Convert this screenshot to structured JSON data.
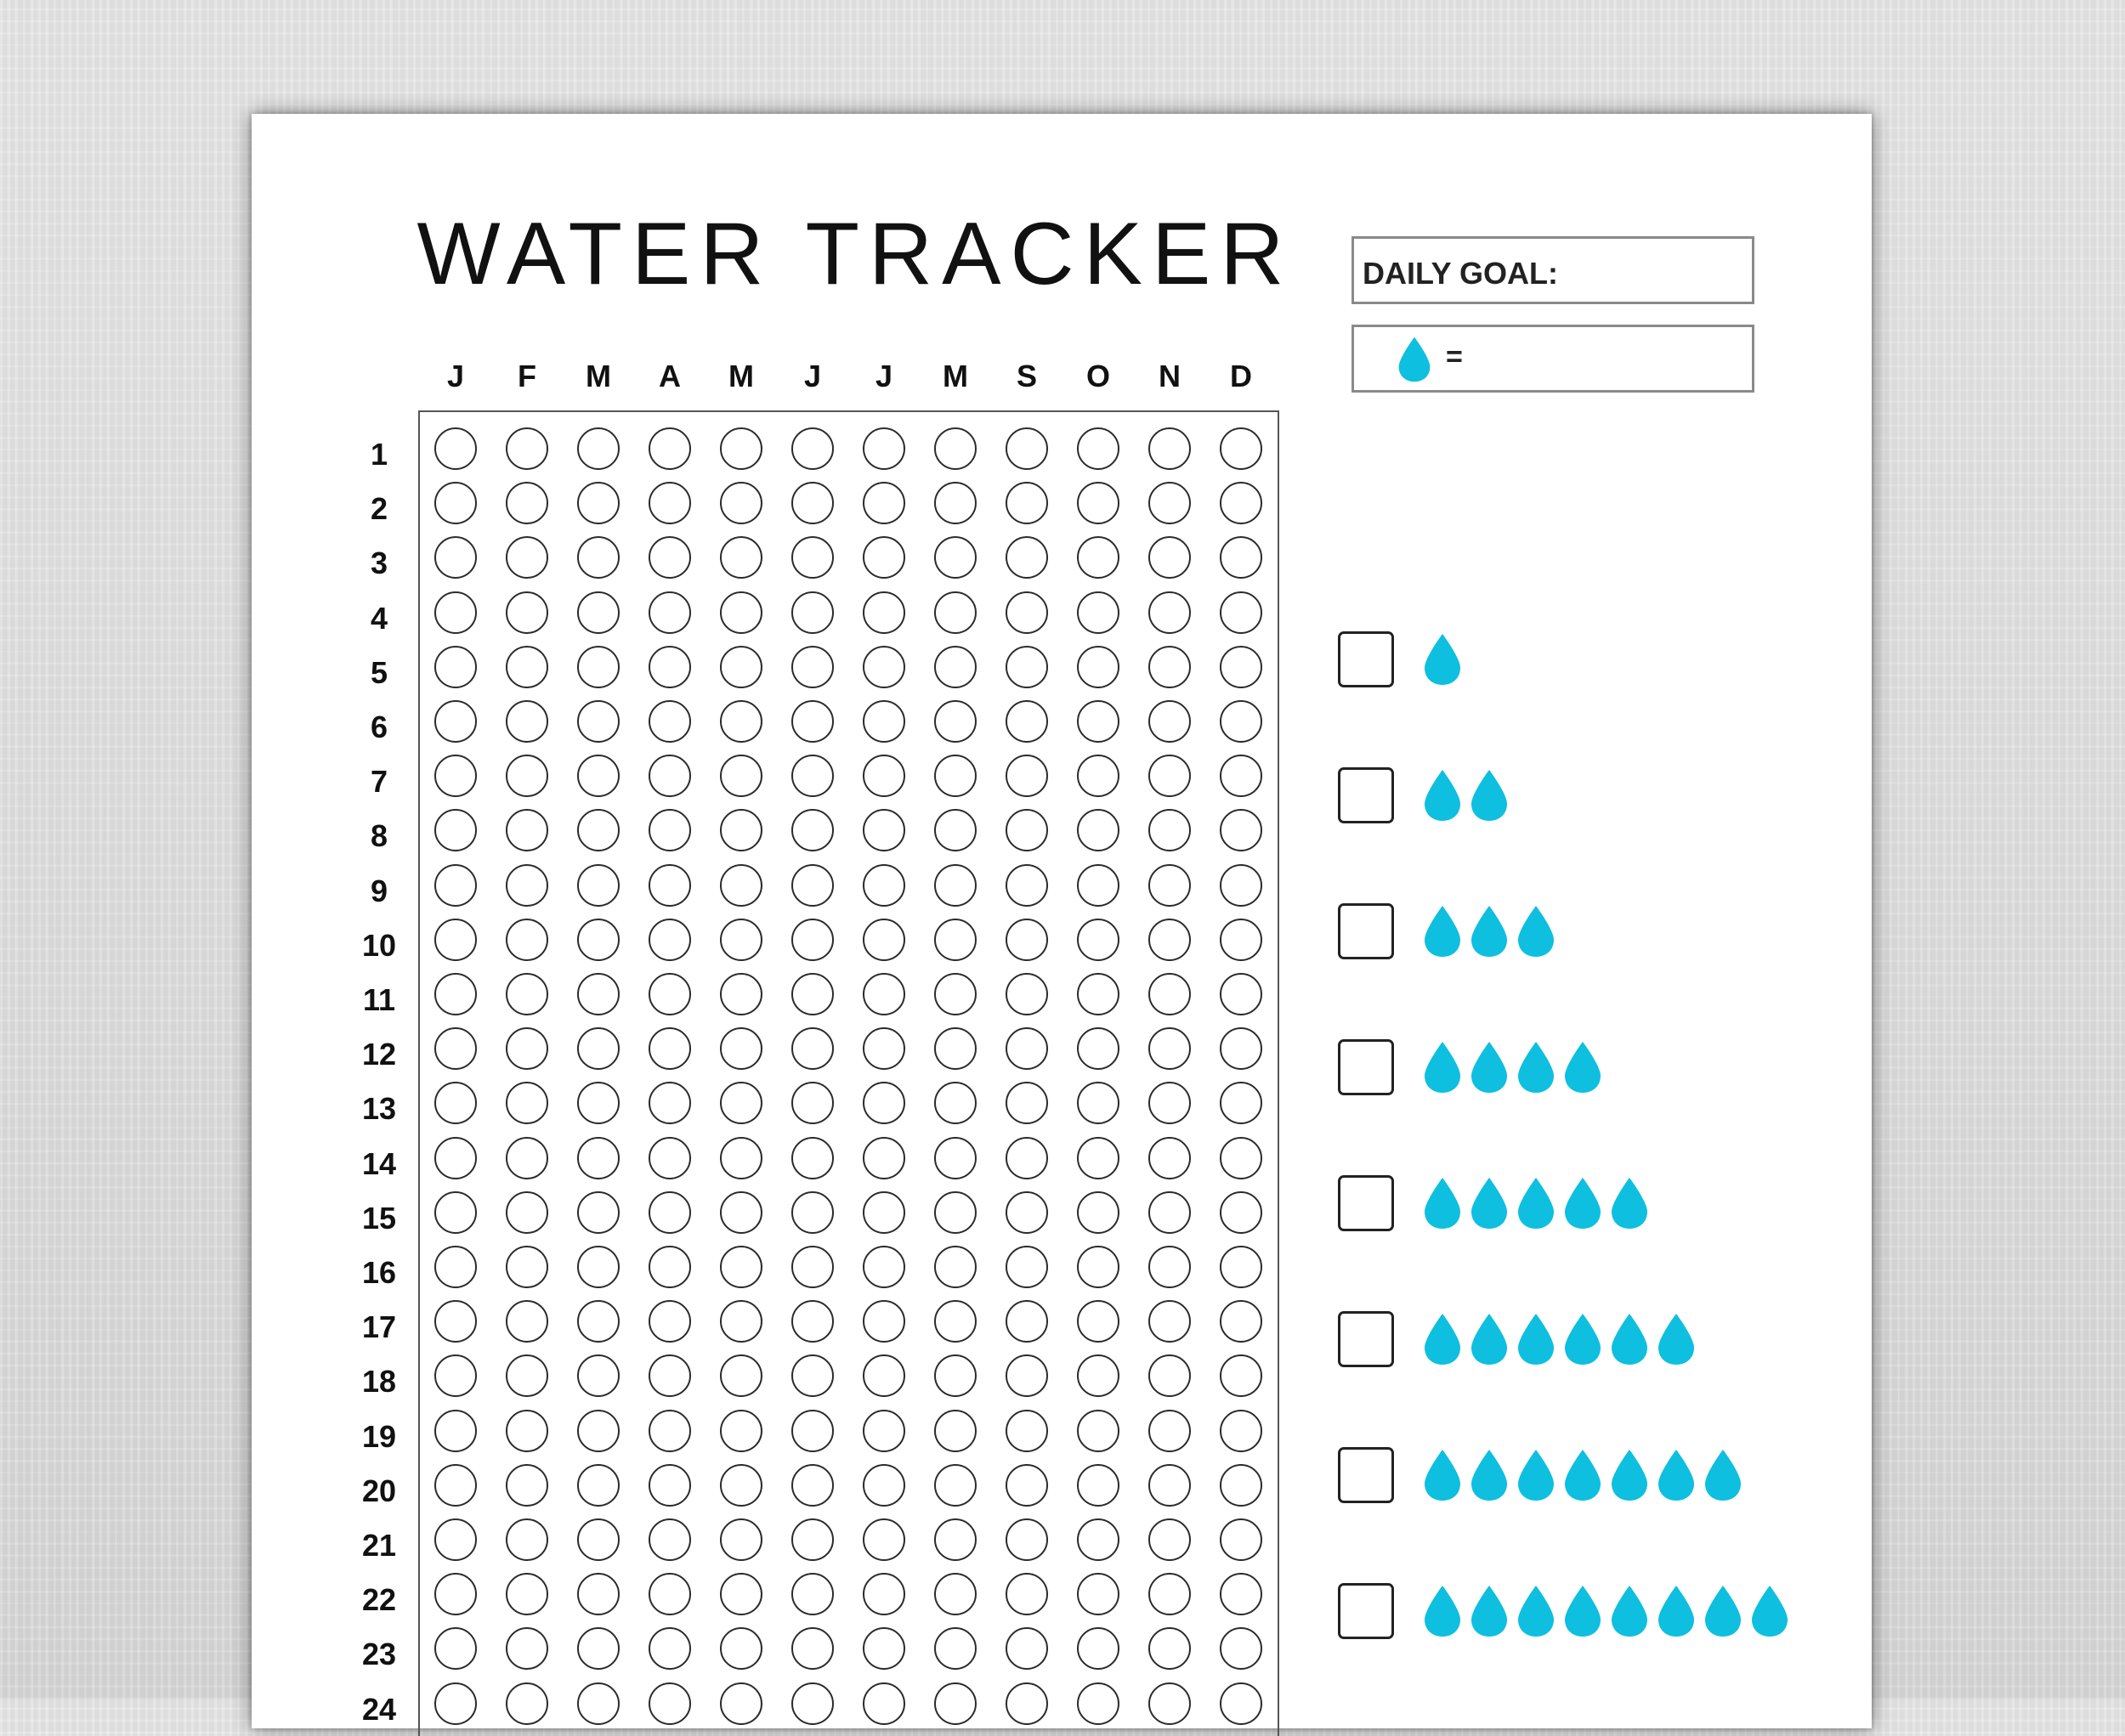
{
  "title": "WATER TRACKER",
  "daily_goal_label": "DAILY GOAL:",
  "legend": {
    "icon": "water-drop-icon",
    "equals": "="
  },
  "months": [
    "J",
    "F",
    "M",
    "A",
    "M",
    "J",
    "J",
    "M",
    "S",
    "O",
    "N",
    "D"
  ],
  "days": [
    "1",
    "2",
    "3",
    "4",
    "5",
    "6",
    "7",
    "8",
    "9",
    "10",
    "11",
    "12",
    "13",
    "14",
    "15",
    "16",
    "17",
    "18",
    "19",
    "20",
    "21",
    "22",
    "23",
    "24"
  ],
  "glass_options": [
    1,
    2,
    3,
    4,
    5,
    6,
    7,
    8
  ],
  "colors": {
    "drop": "#0EBFDF",
    "ink": "#111111",
    "paper": "#FFFFFF"
  }
}
